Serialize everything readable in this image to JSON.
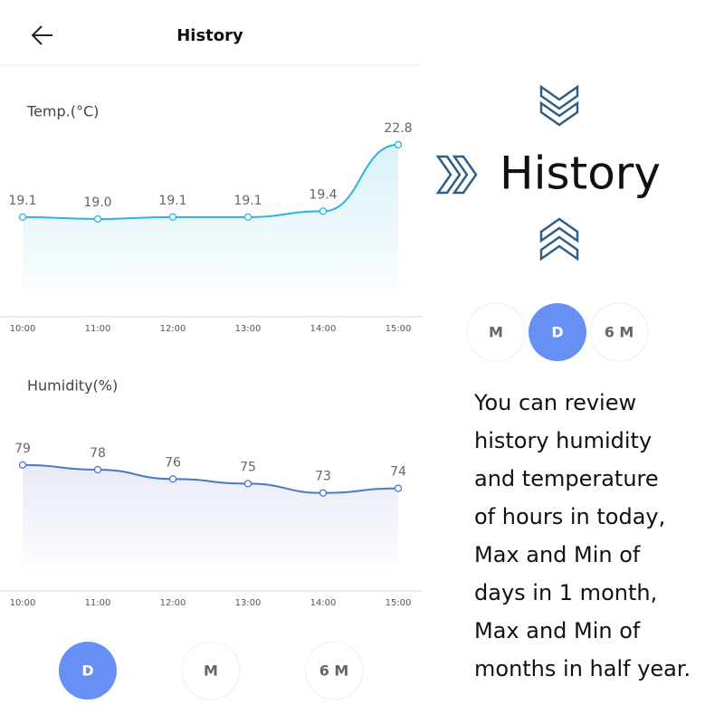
{
  "header": {
    "title": "History"
  },
  "chart_data": [
    {
      "type": "line",
      "title": "Temp.(°C)",
      "categories": [
        "10:00",
        "11:00",
        "12:00",
        "13:00",
        "14:00",
        "15:00"
      ],
      "series": [
        {
          "name": "Temp.",
          "color": "#2bb5d9",
          "values": [
            19.1,
            19.0,
            19.1,
            19.1,
            19.4,
            22.8
          ],
          "value_labels": [
            "19.1",
            "19.0",
            "19.1",
            "19.1",
            "19.4",
            "22.8"
          ]
        }
      ],
      "ylim": [
        14,
        24
      ]
    },
    {
      "type": "line",
      "title": "Humidity(%)",
      "categories": [
        "10:00",
        "11:00",
        "12:00",
        "13:00",
        "14:00",
        "15:00"
      ],
      "series": [
        {
          "name": "Humidity",
          "color": "#4a78c6",
          "values": [
            79,
            78,
            76,
            75,
            73,
            74
          ]
        }
      ],
      "ylim": [
        52,
        84
      ]
    }
  ],
  "bottom_tabs": [
    "D",
    "M",
    "6 M"
  ],
  "promo": {
    "title": "History",
    "tabs": [
      "M",
      "D",
      "6 M"
    ],
    "lines": [
      "You can review",
      "history humidity",
      "and temperature",
      "of hours in today,",
      "Max and Min of",
      "days in 1 month,",
      "Max and Min of",
      "months in half year."
    ]
  }
}
